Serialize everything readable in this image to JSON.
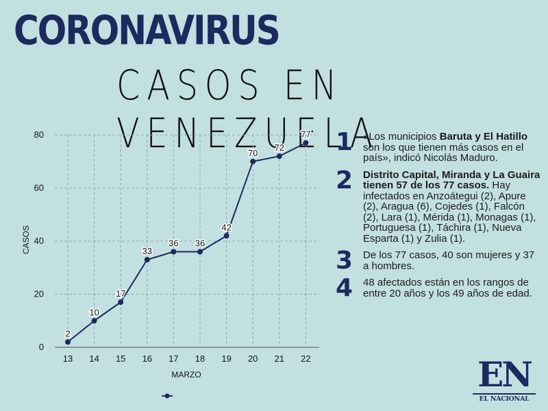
{
  "header": {
    "title": "CORONAVIRUS",
    "subtitle": "CASOS EN VENEZUELA"
  },
  "chart_data": {
    "type": "line",
    "categories": [
      "13",
      "14",
      "15",
      "16",
      "17",
      "18",
      "19",
      "20",
      "21",
      "22"
    ],
    "values": [
      2,
      10,
      17,
      33,
      36,
      36,
      42,
      70,
      72,
      77
    ],
    "xlabel": "MARZO",
    "ylabel": "CASOS",
    "ylim": [
      0,
      80
    ],
    "yticks": [
      "0",
      "20",
      "40",
      "60",
      "80"
    ],
    "grid": true,
    "data_labels": true,
    "line_color": "#1c2a5e",
    "legend_position": "bottom"
  },
  "notes": [
    {
      "number": "1",
      "parts": [
        {
          "text": "«Los municipios ",
          "bold": false
        },
        {
          "text": "Baruta y El Hatillo",
          "bold": true
        },
        {
          "text": " son los que tienen más casos en el país», indicó Nicolás Maduro.",
          "bold": false
        }
      ]
    },
    {
      "number": "2",
      "parts": [
        {
          "text": "Distrito Capital, Miranda y La Guaira tienen 57 de los 77 casos.",
          "bold": true
        },
        {
          "text": " Hay infectados en Anzoátegui (2), Apure (2), Aragua (6), Cojedes (1), Falcón (2), Lara (1), Mérida (1), Monagas (1), Portuguesa (1), Táchira (1), Nueva Esparta (1) y Zulia (1).",
          "bold": false
        }
      ]
    },
    {
      "number": "3",
      "parts": [
        {
          "text": "De los 77 casos, 40 son mujeres y 37 a hombres.",
          "bold": false
        }
      ]
    },
    {
      "number": "4",
      "parts": [
        {
          "text": "48 afectados están en los rangos de entre 20 años y los 49 años de edad.",
          "bold": false
        }
      ]
    }
  ],
  "logo": {
    "initials": "EN",
    "name": "EL NACIONAL",
    "color": "#1c2a5e"
  },
  "colors": {
    "background": "#c3e0e1",
    "accent": "#1c2a5e"
  }
}
